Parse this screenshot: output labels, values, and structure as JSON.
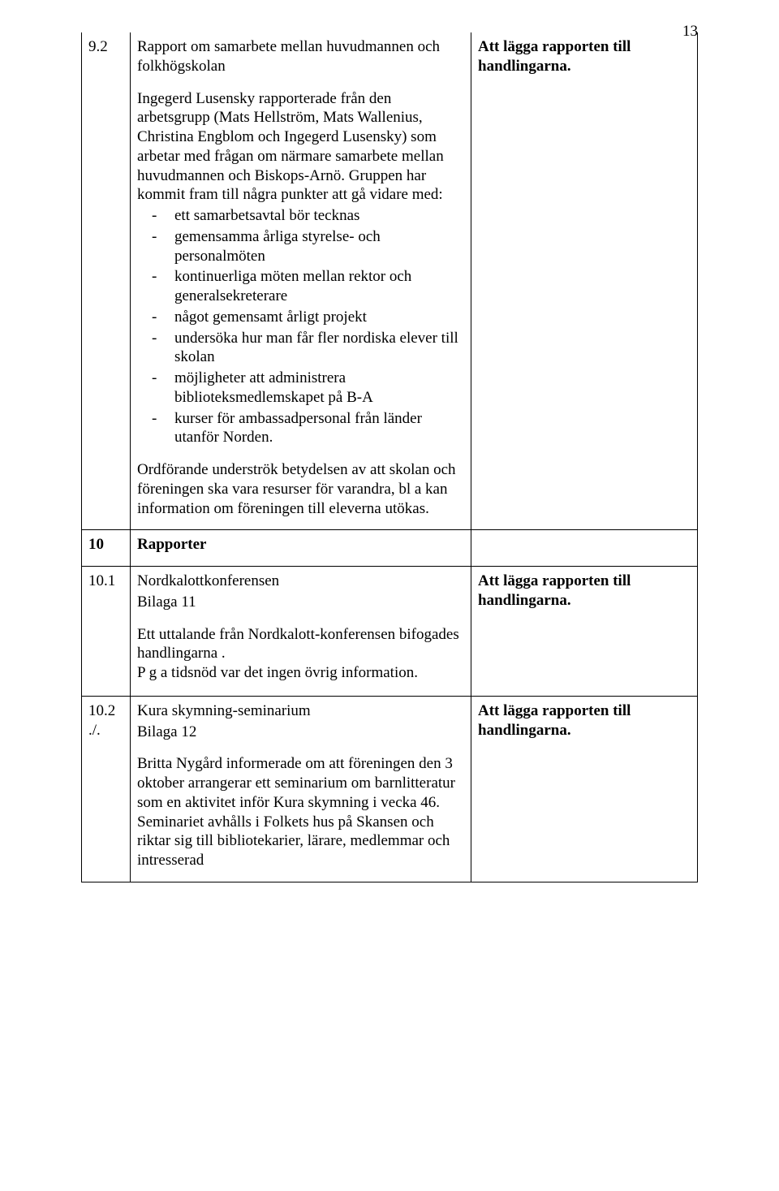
{
  "page_number": "13",
  "rows": {
    "r92": {
      "num": "9.2",
      "title": "Rapport om samarbete mellan huvudmannen och folkhögskolan",
      "intro": "Ingegerd Lusensky rapporterade från den arbetsgrupp (Mats Hellström, Mats Wallenius, Christina Engblom och Ingegerd Lusensky) som arbetar med frågan om närmare samarbete mellan huvudmannen och Biskops-Arnö. Gruppen har kommit fram till några punkter att gå vidare med:",
      "bullets": [
        "ett samarbetsavtal bör tecknas",
        "gemensamma årliga styrelse- och personalmöten",
        "kontinuerliga möten mellan rektor och generalsekreterare",
        "något gemensamt årligt projekt",
        "undersöka hur man får fler nordiska elever till skolan",
        "möjligheter att administrera biblioteksmedlemskapet på B-A",
        "kurser för ambassadpersonal från länder utanför Norden."
      ],
      "closing": "Ordförande underströk betydelsen av att skolan och föreningen ska vara resurser för varandra,  bl a kan information om föreningen till eleverna utökas.",
      "action": "Att lägga rapporten till handlingarna."
    },
    "r10": {
      "num": "10",
      "title": "Rapporter"
    },
    "r101": {
      "num": "10.1",
      "line1": "Nordkalottkonferensen",
      "line2": "Bilaga 11",
      "para": "Ett uttalande från Nordkalott-konferensen bifogades handlingarna .",
      "para2": "P g a tidsnöd var det ingen övrig information.",
      "action": "Att lägga rapporten till handlingarna."
    },
    "r102": {
      "num": "10.2",
      "num2": "./.",
      "line1": "Kura skymning-seminarium",
      "line2": "Bilaga 12",
      "para": "Britta Nygård informerade om att föreningen den 3 oktober  arrangerar ett seminarium om barnlitteratur som en aktivitet inför Kura skymning i vecka 46. Seminariet avhålls i Folkets hus på Skansen och riktar sig till bibliotekarier, lärare, medlemmar och intresserad",
      "action": "Att lägga rapporten till handlingarna."
    }
  }
}
